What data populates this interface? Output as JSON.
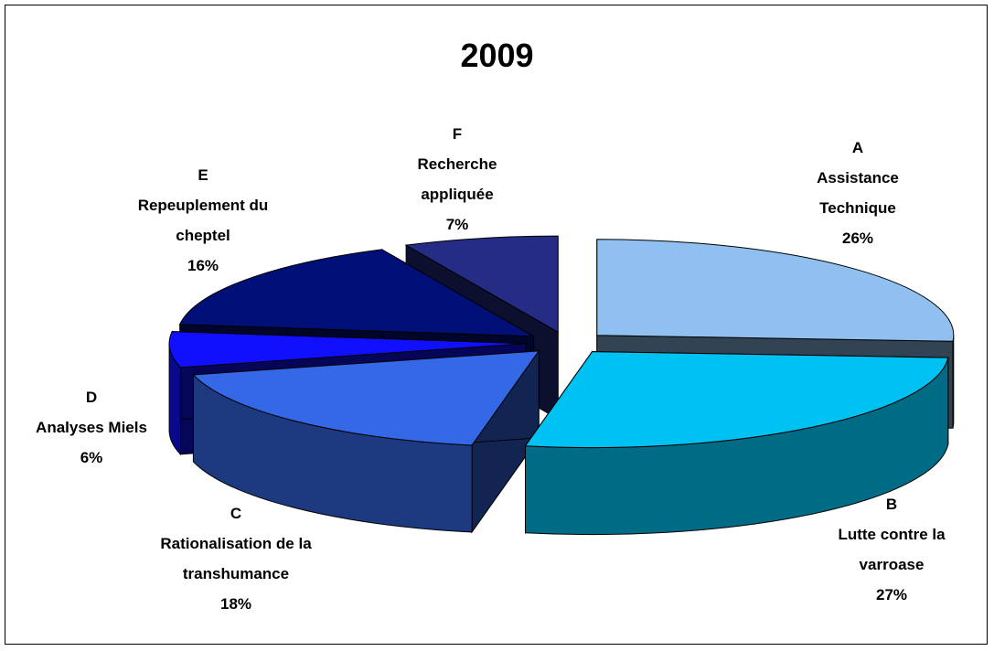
{
  "chart_data": {
    "type": "pie",
    "title": "2009",
    "codes": [
      "A",
      "B",
      "C",
      "D",
      "E",
      "F"
    ],
    "categories": [
      "Assistance Technique",
      "Lutte contre la varroase",
      "Rationalisation de la transhumance",
      "Analyses Miels",
      "Repeuplement du cheptel",
      "Recherche appliquée"
    ],
    "values": [
      26,
      27,
      18,
      6,
      16,
      7
    ],
    "value_labels": [
      "26%",
      "27%",
      "18%",
      "6%",
      "16%",
      "7%"
    ],
    "colors": [
      "#8fc0f0",
      "#00c2f2",
      "#3468e6",
      "#1010ff",
      "#001078",
      "#242c86"
    ]
  }
}
